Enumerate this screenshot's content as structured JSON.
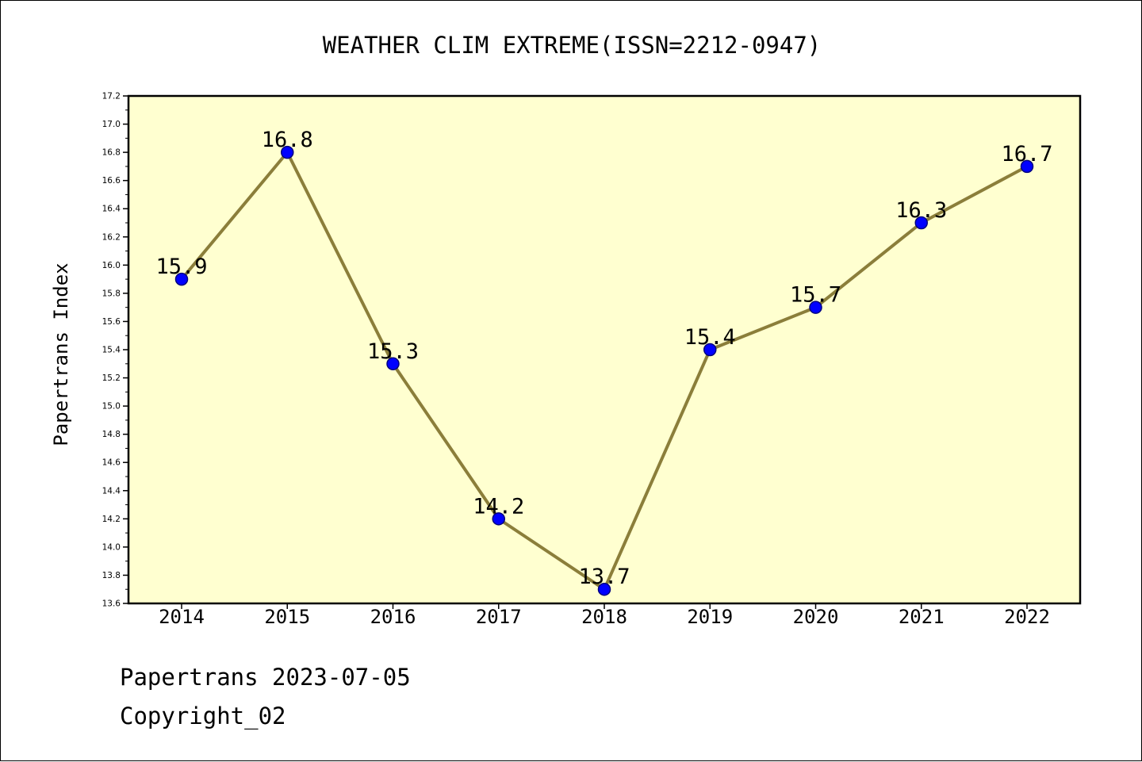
{
  "chart_data": {
    "type": "line",
    "title": "WEATHER CLIM EXTREME(ISSN=2212-0947)",
    "ylabel": "Papertrans Index",
    "xlabel": "",
    "categories": [
      "2014",
      "2015",
      "2016",
      "2017",
      "2018",
      "2019",
      "2020",
      "2021",
      "2022"
    ],
    "values": [
      15.9,
      16.8,
      15.3,
      14.2,
      13.7,
      15.4,
      15.7,
      16.3,
      16.7
    ],
    "data_labels": [
      "15.9",
      "16.8",
      "15.3",
      "14.2",
      "13.7",
      "15.4",
      "15.7",
      "16.3",
      "16.7"
    ],
    "ylim": [
      13.6,
      17.2
    ],
    "yticks": [
      "13.6",
      "13.8",
      "14.0",
      "14.2",
      "14.4",
      "14.6",
      "14.8",
      "15.0",
      "15.2",
      "15.4",
      "15.6",
      "15.8",
      "16.0",
      "16.2",
      "16.4",
      "16.6",
      "16.8",
      "17.0",
      "17.2"
    ],
    "grid": false,
    "legend": "none",
    "colors": {
      "plot_background": "#ffffd0",
      "line": "#8b7e3a",
      "marker_fill": "#0000ff",
      "marker_edge": "#000080",
      "axis": "#000000"
    }
  },
  "footer": {
    "line1": "Papertrans 2023-07-05",
    "line2": "Copyright_02"
  }
}
